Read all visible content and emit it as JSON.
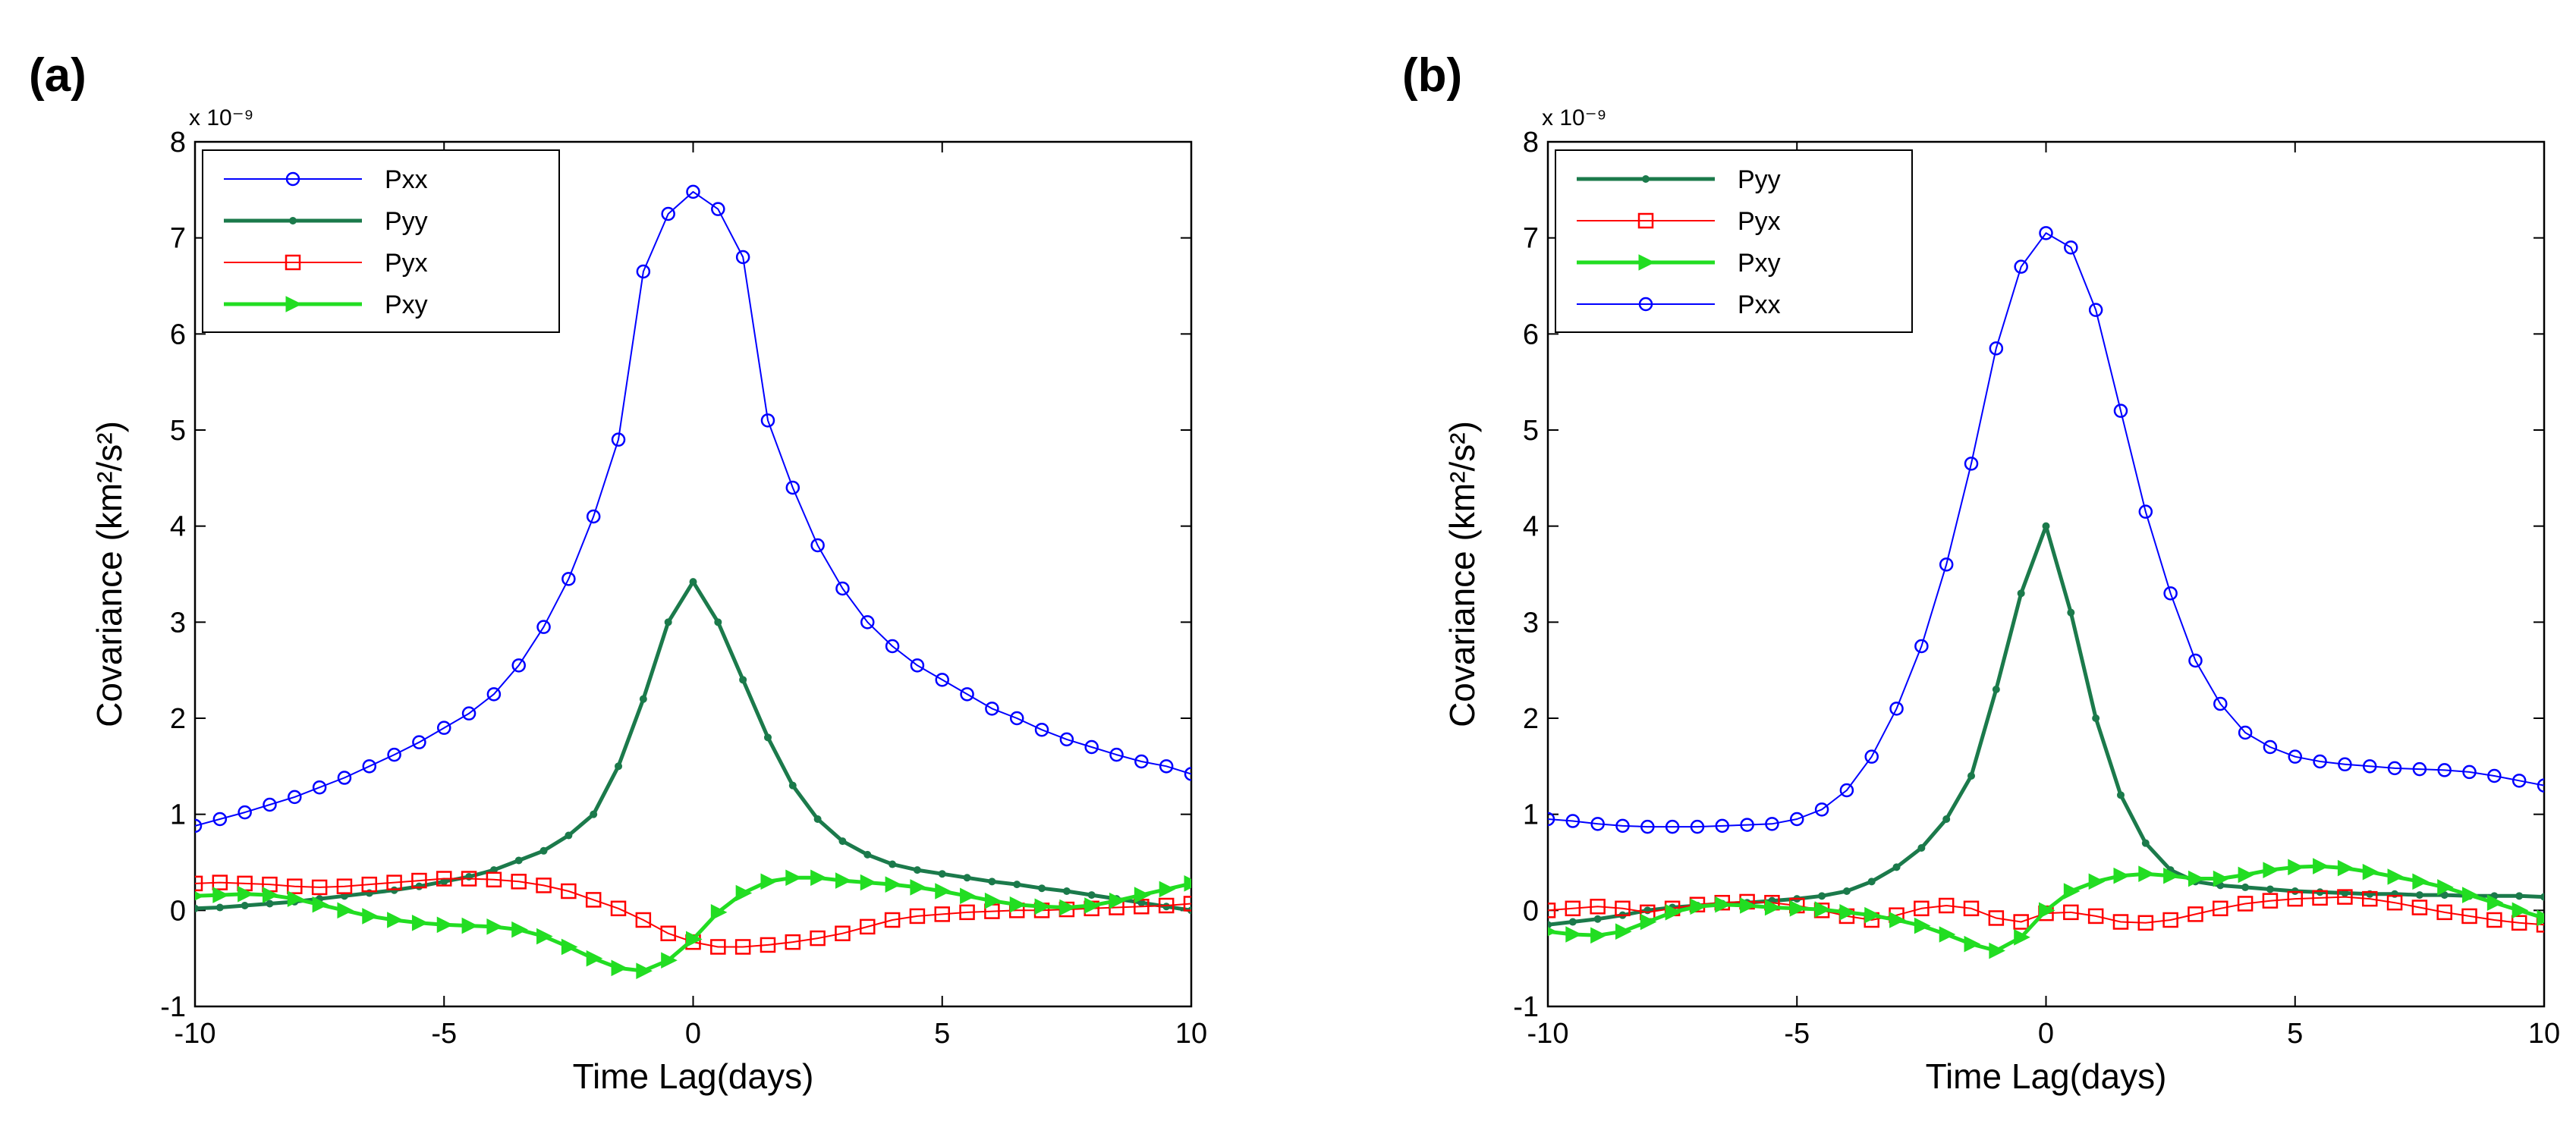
{
  "chart_data": [
    {
      "type": "line",
      "panel_label": "(a)",
      "xlabel": "Time Lag(days)",
      "ylabel": "Covariance (km²/s²)",
      "y_multiplier": "x 10⁻⁹",
      "xlim": [
        -10,
        10
      ],
      "ylim": [
        -1,
        8
      ],
      "xticks": [
        -10,
        -5,
        0,
        5,
        10
      ],
      "yticks": [
        -1,
        0,
        1,
        2,
        3,
        4,
        5,
        6,
        7,
        8
      ],
      "legend_position": "top-left",
      "series": [
        {
          "name": "Pxx",
          "color": "#0000ff",
          "marker": "circle",
          "width": 2,
          "x": [
            -10,
            -9.5,
            -9,
            -8.5,
            -8,
            -7.5,
            -7,
            -6.5,
            -6,
            -5.5,
            -5,
            -4.5,
            -4,
            -3.5,
            -3,
            -2.5,
            -2,
            -1.5,
            -1,
            -0.5,
            0,
            0.5,
            1,
            1.5,
            2,
            2.5,
            3,
            3.5,
            4,
            4.5,
            5,
            5.5,
            6,
            6.5,
            7,
            7.5,
            8,
            8.5,
            9,
            9.5,
            10
          ],
          "y": [
            0.88,
            0.95,
            1.02,
            1.1,
            1.18,
            1.28,
            1.38,
            1.5,
            1.62,
            1.75,
            1.9,
            2.05,
            2.25,
            2.55,
            2.95,
            3.45,
            4.1,
            4.9,
            6.65,
            7.25,
            7.48,
            7.3,
            6.8,
            5.1,
            4.4,
            3.8,
            3.35,
            3.0,
            2.75,
            2.55,
            2.4,
            2.25,
            2.1,
            2.0,
            1.88,
            1.78,
            1.7,
            1.62,
            1.55,
            1.5,
            1.42
          ]
        },
        {
          "name": "Pyy",
          "color": "#1b7a4b",
          "marker": "star",
          "width": 5,
          "x": [
            -10,
            -9.5,
            -9,
            -8.5,
            -8,
            -7.5,
            -7,
            -6.5,
            -6,
            -5.5,
            -5,
            -4.5,
            -4,
            -3.5,
            -3,
            -2.5,
            -2,
            -1.5,
            -1,
            -0.5,
            0,
            0.5,
            1,
            1.5,
            2,
            2.5,
            3,
            3.5,
            4,
            4.5,
            5,
            5.5,
            6,
            6.5,
            7,
            7.5,
            8,
            8.5,
            9,
            9.5,
            10
          ],
          "y": [
            0.02,
            0.03,
            0.05,
            0.07,
            0.09,
            0.12,
            0.15,
            0.18,
            0.21,
            0.25,
            0.3,
            0.35,
            0.42,
            0.52,
            0.62,
            0.78,
            1.0,
            1.5,
            2.2,
            3.0,
            3.42,
            3.0,
            2.4,
            1.8,
            1.3,
            0.95,
            0.72,
            0.58,
            0.48,
            0.42,
            0.38,
            0.34,
            0.3,
            0.27,
            0.23,
            0.2,
            0.16,
            0.12,
            0.08,
            0.04,
            0.0
          ]
        },
        {
          "name": "Pyx",
          "color": "#ff0000",
          "marker": "square",
          "width": 2,
          "x": [
            -10,
            -9.5,
            -9,
            -8.5,
            -8,
            -7.5,
            -7,
            -6.5,
            -6,
            -5.5,
            -5,
            -4.5,
            -4,
            -3.5,
            -3,
            -2.5,
            -2,
            -1.5,
            -1,
            -0.5,
            0,
            0.5,
            1,
            1.5,
            2,
            2.5,
            3,
            3.5,
            4,
            4.5,
            5,
            5.5,
            6,
            6.5,
            7,
            7.5,
            8,
            8.5,
            9,
            9.5,
            10
          ],
          "y": [
            0.28,
            0.29,
            0.28,
            0.27,
            0.25,
            0.24,
            0.25,
            0.27,
            0.29,
            0.31,
            0.33,
            0.33,
            0.32,
            0.3,
            0.26,
            0.2,
            0.11,
            0.02,
            -0.1,
            -0.24,
            -0.33,
            -0.38,
            -0.38,
            -0.36,
            -0.33,
            -0.29,
            -0.24,
            -0.17,
            -0.1,
            -0.06,
            -0.04,
            -0.02,
            -0.01,
            0.0,
            0.0,
            0.01,
            0.02,
            0.03,
            0.04,
            0.05,
            0.07
          ]
        },
        {
          "name": "Pxy",
          "color": "#22dd22",
          "marker": "triangle-right",
          "width": 5,
          "x": [
            -10,
            -9.5,
            -9,
            -8.5,
            -8,
            -7.5,
            -7,
            -6.5,
            -6,
            -5.5,
            -5,
            -4.5,
            -4,
            -3.5,
            -3,
            -2.5,
            -2,
            -1.5,
            -1,
            -0.5,
            0,
            0.5,
            1,
            1.5,
            2,
            2.5,
            3,
            3.5,
            4,
            4.5,
            5,
            5.5,
            6,
            6.5,
            7,
            7.5,
            8,
            8.5,
            9,
            9.5,
            10
          ],
          "y": [
            0.15,
            0.16,
            0.17,
            0.16,
            0.12,
            0.06,
            0.0,
            -0.06,
            -0.1,
            -0.13,
            -0.15,
            -0.16,
            -0.17,
            -0.2,
            -0.27,
            -0.38,
            -0.5,
            -0.6,
            -0.63,
            -0.52,
            -0.3,
            -0.02,
            0.18,
            0.3,
            0.34,
            0.34,
            0.31,
            0.29,
            0.27,
            0.24,
            0.2,
            0.15,
            0.1,
            0.06,
            0.04,
            0.03,
            0.05,
            0.1,
            0.16,
            0.22,
            0.28
          ]
        }
      ]
    },
    {
      "type": "line",
      "panel_label": "(b)",
      "xlabel": "Time Lag(days)",
      "ylabel": "Covariance (km²/s²)",
      "y_multiplier": "x 10⁻⁹",
      "xlim": [
        -10,
        10
      ],
      "ylim": [
        -1,
        8
      ],
      "xticks": [
        -10,
        -5,
        0,
        5,
        10
      ],
      "yticks": [
        -1,
        0,
        1,
        2,
        3,
        4,
        5,
        6,
        7,
        8
      ],
      "legend_position": "top-left",
      "series": [
        {
          "name": "Pyy",
          "color": "#1b7a4b",
          "marker": "star",
          "width": 5,
          "x": [
            -10,
            -9.5,
            -9,
            -8.5,
            -8,
            -7.5,
            -7,
            -6.5,
            -6,
            -5.5,
            -5,
            -4.5,
            -4,
            -3.5,
            -3,
            -2.5,
            -2,
            -1.5,
            -1,
            -0.5,
            0,
            0.5,
            1,
            1.5,
            2,
            2.5,
            3,
            3.5,
            4,
            4.5,
            5,
            5.5,
            6,
            6.5,
            7,
            7.5,
            8,
            8.5,
            9,
            9.5,
            10
          ],
          "y": [
            -0.15,
            -0.12,
            -0.09,
            -0.05,
            0.0,
            0.03,
            0.05,
            0.07,
            0.08,
            0.1,
            0.12,
            0.15,
            0.2,
            0.3,
            0.45,
            0.65,
            0.95,
            1.4,
            2.3,
            3.3,
            4.0,
            3.1,
            2.0,
            1.2,
            0.7,
            0.42,
            0.3,
            0.26,
            0.24,
            0.22,
            0.2,
            0.19,
            0.18,
            0.17,
            0.17,
            0.16,
            0.16,
            0.15,
            0.15,
            0.15,
            0.14
          ]
        },
        {
          "name": "Pyx",
          "color": "#ff0000",
          "marker": "square",
          "width": 2,
          "x": [
            -10,
            -9.5,
            -9,
            -8.5,
            -8,
            -7.5,
            -7,
            -6.5,
            -6,
            -5.5,
            -5,
            -4.5,
            -4,
            -3.5,
            -3,
            -2.5,
            -2,
            -1.5,
            -1,
            -0.5,
            0,
            0.5,
            1,
            1.5,
            2,
            2.5,
            3,
            3.5,
            4,
            4.5,
            5,
            5.5,
            6,
            6.5,
            7,
            7.5,
            8,
            8.5,
            9,
            9.5,
            10
          ],
          "y": [
            0.0,
            0.02,
            0.04,
            0.02,
            -0.02,
            0.02,
            0.06,
            0.08,
            0.09,
            0.08,
            0.05,
            0.0,
            -0.06,
            -0.1,
            -0.05,
            0.02,
            0.05,
            0.02,
            -0.08,
            -0.12,
            -0.03,
            -0.02,
            -0.06,
            -0.12,
            -0.13,
            -0.1,
            -0.04,
            0.02,
            0.07,
            0.1,
            0.12,
            0.13,
            0.14,
            0.12,
            0.08,
            0.03,
            -0.02,
            -0.06,
            -0.1,
            -0.13,
            -0.15
          ]
        },
        {
          "name": "Pxy",
          "color": "#22dd22",
          "marker": "triangle-right",
          "width": 5,
          "x": [
            -10,
            -9.5,
            -9,
            -8.5,
            -8,
            -7.5,
            -7,
            -6.5,
            -6,
            -5.5,
            -5,
            -4.5,
            -4,
            -3.5,
            -3,
            -2.5,
            -2,
            -1.5,
            -1,
            -0.5,
            0,
            0.5,
            1,
            1.5,
            2,
            2.5,
            3,
            3.5,
            4,
            4.5,
            5,
            5.5,
            6,
            6.5,
            7,
            7.5,
            8,
            8.5,
            9,
            9.5,
            10
          ],
          "y": [
            -0.22,
            -0.25,
            -0.26,
            -0.22,
            -0.12,
            -0.02,
            0.04,
            0.06,
            0.05,
            0.03,
            0.02,
            0.01,
            -0.02,
            -0.05,
            -0.1,
            -0.16,
            -0.25,
            -0.35,
            -0.42,
            -0.28,
            0.0,
            0.2,
            0.3,
            0.36,
            0.38,
            0.36,
            0.33,
            0.33,
            0.37,
            0.42,
            0.45,
            0.46,
            0.44,
            0.4,
            0.35,
            0.3,
            0.24,
            0.16,
            0.08,
            0.0,
            -0.08
          ]
        },
        {
          "name": "Pxx",
          "color": "#0000ff",
          "marker": "circle",
          "width": 2,
          "x": [
            -10,
            -9.5,
            -9,
            -8.5,
            -8,
            -7.5,
            -7,
            -6.5,
            -6,
            -5.5,
            -5,
            -4.5,
            -4,
            -3.5,
            -3,
            -2.5,
            -2,
            -1.5,
            -1,
            -0.5,
            0,
            0.5,
            1,
            1.5,
            2,
            2.5,
            3,
            3.5,
            4,
            4.5,
            5,
            5.5,
            6,
            6.5,
            7,
            7.5,
            8,
            8.5,
            9,
            9.5,
            10
          ],
          "y": [
            0.95,
            0.93,
            0.9,
            0.88,
            0.87,
            0.87,
            0.87,
            0.88,
            0.89,
            0.9,
            0.95,
            1.05,
            1.25,
            1.6,
            2.1,
            2.75,
            3.6,
            4.65,
            5.85,
            6.7,
            7.05,
            6.9,
            6.25,
            5.2,
            4.15,
            3.3,
            2.6,
            2.15,
            1.85,
            1.7,
            1.6,
            1.55,
            1.52,
            1.5,
            1.48,
            1.47,
            1.46,
            1.44,
            1.4,
            1.35,
            1.3
          ]
        }
      ]
    }
  ]
}
